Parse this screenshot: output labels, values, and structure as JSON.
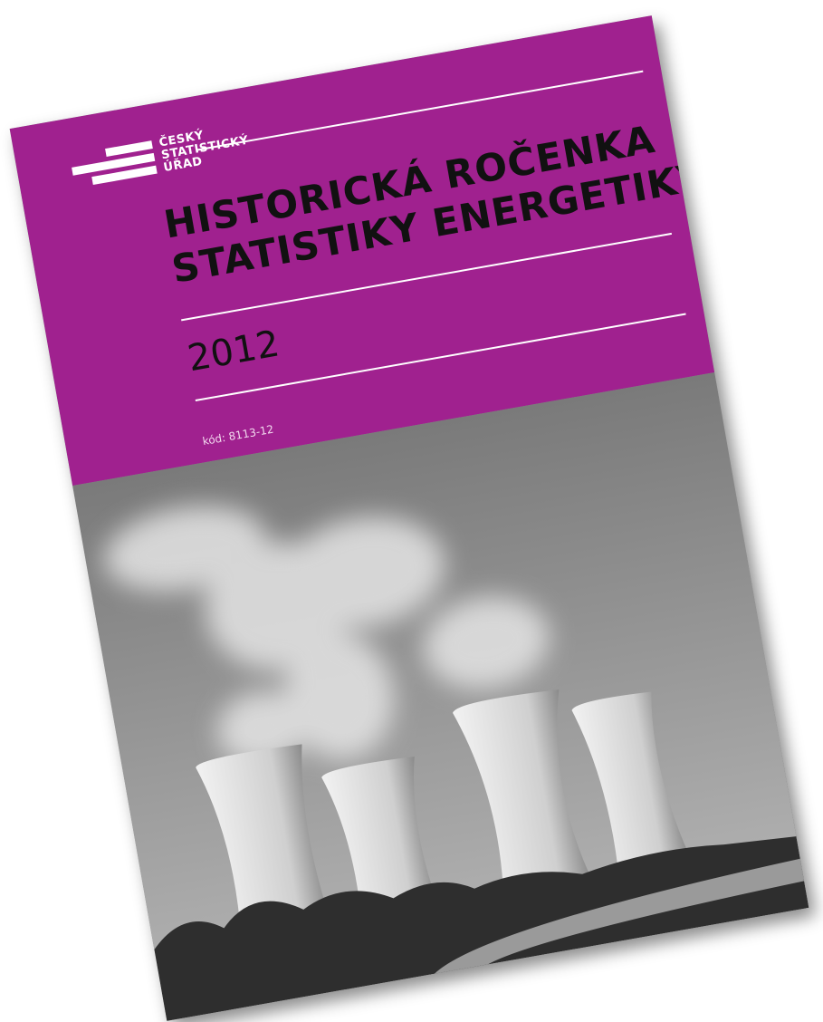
{
  "logo": {
    "lines": [
      "ČESKÝ",
      "STATISTICKÝ",
      "ÚŘAD"
    ]
  },
  "title": {
    "lines": [
      "HISTORICKÁ ROČENKA",
      "STATISTIKY ENERGETIKY"
    ]
  },
  "year": "2012",
  "code": "kód: 8113-12"
}
